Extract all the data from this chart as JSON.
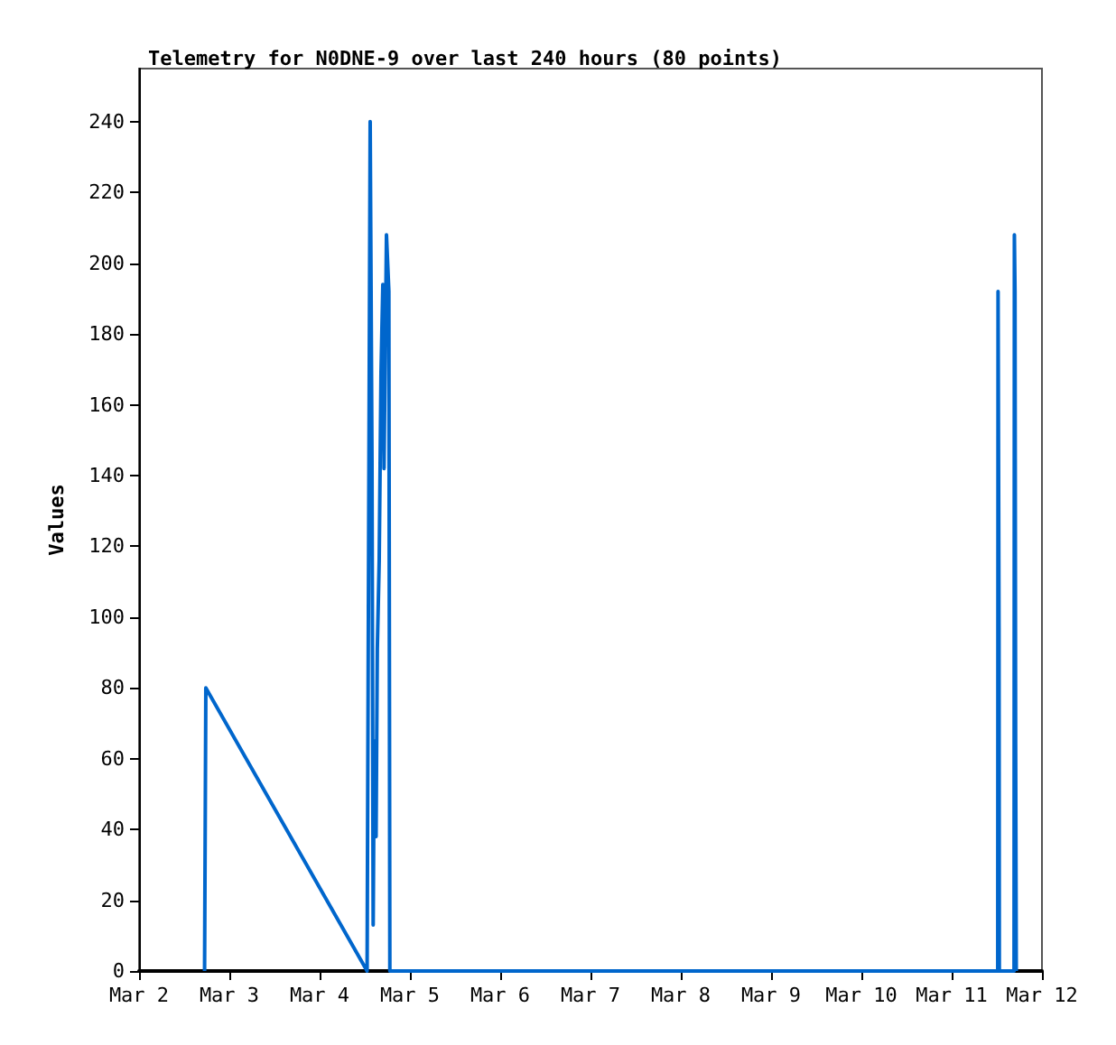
{
  "chart_data": {
    "type": "line",
    "title": "Telemetry for N0DNE-9 over last 240 hours (80 points)",
    "ylabel": "Values",
    "x": [
      "--03-02T17:25",
      "--03-02T17:45",
      "--03-04T12:37",
      "--03-04T13:26",
      "--03-04T13:55",
      "--03-04T14:14",
      "--03-04T14:31",
      "--03-04T15:00",
      "--03-04T15:20",
      "--03-04T15:50",
      "--03-04T16:19",
      "--03-04T16:48",
      "--03-04T17:07",
      "--03-04T17:46",
      "--03-04T18:24",
      "--03-04T18:40",
      "--03-11T12:15",
      "--03-11T12:20",
      "--03-11T12:35",
      "--03-11T12:40",
      "--03-11T16:35",
      "--03-11T16:40",
      "--03-11T16:50",
      "--03-11T17:00",
      "--03-11T17:10"
    ],
    "series": [
      {
        "color": "#0066cc",
        "values": [
          0,
          80,
          0,
          240,
          144,
          13,
          65,
          38,
          91,
          116,
          169,
          194,
          142,
          208,
          192,
          0,
          0,
          192,
          97,
          0,
          0,
          208,
          192,
          64,
          0
        ]
      }
    ],
    "xlim": [
      "--03-02",
      "--03-12"
    ],
    "xticks": [
      {
        "value": "--03-02",
        "label": "Mar 2"
      },
      {
        "value": "--03-03",
        "label": "Mar 3"
      },
      {
        "value": "--03-04",
        "label": "Mar 4"
      },
      {
        "value": "--03-05",
        "label": "Mar 5"
      },
      {
        "value": "--03-06",
        "label": "Mar 6"
      },
      {
        "value": "--03-07",
        "label": "Mar 7"
      },
      {
        "value": "--03-08",
        "label": "Mar 8"
      },
      {
        "value": "--03-09",
        "label": "Mar 9"
      },
      {
        "value": "--03-10",
        "label": "Mar 10"
      },
      {
        "value": "--03-11",
        "label": "Mar 11"
      },
      {
        "value": "--03-12",
        "label": "Mar 12"
      }
    ],
    "ylim": [
      0,
      255
    ],
    "yticks": [
      0,
      20,
      40,
      60,
      80,
      100,
      120,
      140,
      160,
      180,
      200,
      220,
      240
    ],
    "grid": false,
    "marker": "none",
    "line_style": "solid"
  }
}
